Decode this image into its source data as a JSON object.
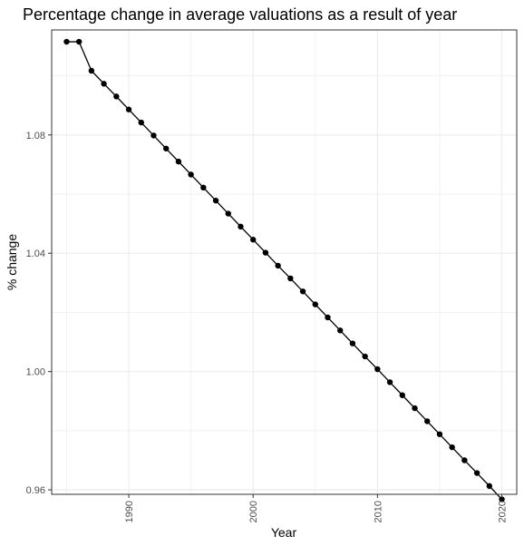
{
  "chart_data": {
    "type": "line",
    "title": "Percentage change in average valuations as a result of year",
    "xlabel": "Year",
    "ylabel": "% change",
    "xlim": [
      1983.8,
      2021.2
    ],
    "ylim": [
      0.9585,
      1.1155
    ],
    "x_ticks": [
      1990,
      2000,
      2010,
      2020
    ],
    "x_minor_ticks": [
      1985,
      1995,
      2005,
      2015
    ],
    "y_ticks": [
      0.96,
      1.0,
      1.04,
      1.08
    ],
    "y_minor_ticks": [
      0.98,
      1.02,
      1.06,
      1.1
    ],
    "y_tick_labels": [
      "0.96",
      "1.00",
      "1.04",
      "1.08"
    ],
    "x_tick_labels": [
      "1990",
      "2000",
      "2010",
      "2020"
    ],
    "grid": true,
    "legend": "none",
    "line_color": "#000000",
    "x": [
      1985,
      1986,
      1987,
      1988,
      1989,
      1990,
      1991,
      1992,
      1993,
      1994,
      1995,
      1996,
      1997,
      1998,
      1999,
      2000,
      2001,
      2002,
      2003,
      2004,
      2005,
      2006,
      2007,
      2008,
      2009,
      2010,
      2011,
      2012,
      2013,
      2014,
      2015,
      2016,
      2017,
      2018,
      2019,
      2020
    ],
    "y": [
      1.1115,
      1.1115,
      1.1017,
      1.0973,
      1.093,
      1.0886,
      1.0842,
      1.0798,
      1.0754,
      1.071,
      1.0666,
      1.0622,
      1.0578,
      1.0534,
      1.049,
      1.0446,
      1.0402,
      1.0358,
      1.0315,
      1.0271,
      1.0227,
      1.0183,
      1.0139,
      1.0095,
      1.0051,
      1.0008,
      0.9964,
      0.992,
      0.9876,
      0.9832,
      0.9788,
      0.9744,
      0.97,
      0.9657,
      0.9613,
      0.9568
    ]
  }
}
